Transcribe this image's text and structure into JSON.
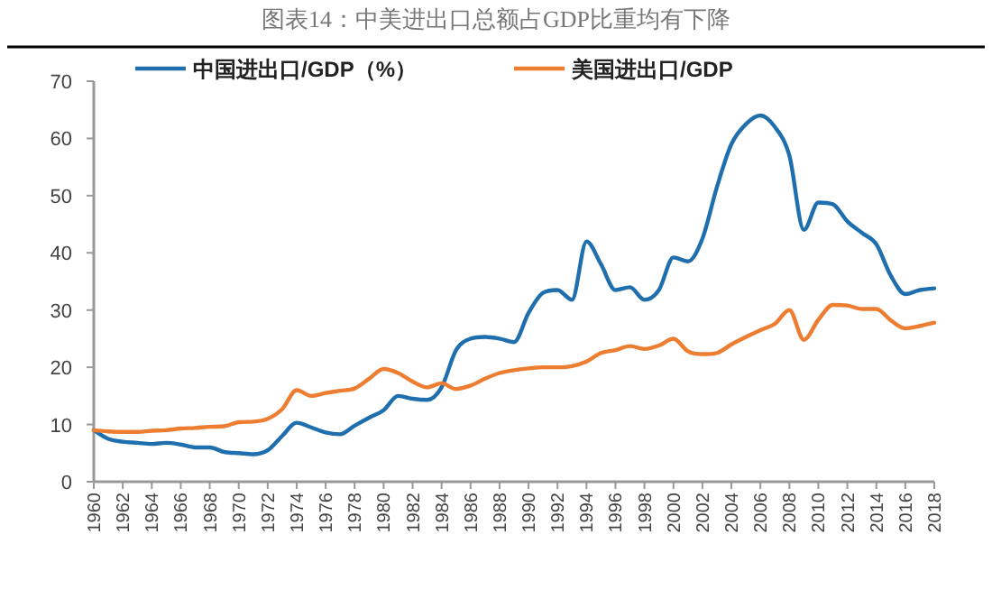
{
  "chart_data": {
    "type": "line",
    "title": "图表14：中美进出口总额占GDP比重均有下降",
    "x": [
      1960,
      1961,
      1962,
      1963,
      1964,
      1965,
      1966,
      1967,
      1968,
      1969,
      1970,
      1971,
      1972,
      1973,
      1974,
      1975,
      1976,
      1977,
      1978,
      1979,
      1980,
      1981,
      1982,
      1983,
      1984,
      1985,
      1986,
      1987,
      1988,
      1989,
      1990,
      1991,
      1992,
      1993,
      1994,
      1995,
      1996,
      1997,
      1998,
      1999,
      2000,
      2001,
      2002,
      2003,
      2004,
      2005,
      2006,
      2007,
      2008,
      2009,
      2010,
      2011,
      2012,
      2013,
      2014,
      2015,
      2016,
      2017,
      2018
    ],
    "xlim": [
      1960,
      2018
    ],
    "xticks": [
      1960,
      1962,
      1964,
      1966,
      1968,
      1970,
      1972,
      1974,
      1976,
      1978,
      1980,
      1982,
      1984,
      1986,
      1988,
      1990,
      1992,
      1994,
      1996,
      1998,
      2000,
      2002,
      2004,
      2006,
      2008,
      2010,
      2012,
      2014,
      2016,
      2018
    ],
    "ylim": [
      0,
      70
    ],
    "yticks": [
      0,
      10,
      20,
      30,
      40,
      50,
      60,
      70
    ],
    "legend": "top",
    "grid": false,
    "series": [
      {
        "name": "中国进出口/GDP（%）",
        "color": "#1f6fae",
        "values": [
          9,
          7.5,
          7,
          6.8,
          6.6,
          6.8,
          6.5,
          6,
          6,
          5.2,
          5,
          4.8,
          5.5,
          8,
          10.3,
          9.5,
          8.6,
          8.3,
          9.8,
          11.2,
          12.5,
          15,
          14.5,
          14.3,
          16.5,
          23,
          25,
          25.3,
          25,
          24.4,
          29.5,
          33,
          33.5,
          31.8,
          42,
          38,
          33.5,
          34,
          31.8,
          33.5,
          39.2,
          38.5,
          42.5,
          51.5,
          59,
          62.5,
          64,
          62,
          57,
          44,
          48.8,
          48.5,
          45.5,
          43.5,
          41.5,
          36,
          32.8,
          33.5,
          33.8
        ]
      },
      {
        "name": "美国进出口/GDP",
        "color": "#ed7d31",
        "values": [
          9,
          8.8,
          8.7,
          8.7,
          8.9,
          9,
          9.3,
          9.4,
          9.6,
          9.7,
          10.4,
          10.5,
          11,
          12.7,
          16,
          15,
          15.5,
          15.9,
          16.3,
          18,
          19.7,
          19,
          17.5,
          16.5,
          17.2,
          16.2,
          16.8,
          18,
          19,
          19.5,
          19.8,
          20,
          20,
          20.2,
          21,
          22.5,
          23,
          23.7,
          23.2,
          23.8,
          25,
          22.8,
          22.3,
          22.5,
          24,
          25.3,
          26.5,
          27.6,
          30,
          24.8,
          28.3,
          30.9,
          30.8,
          30.2,
          30.2,
          28.2,
          26.8,
          27.2,
          27.8
        ]
      }
    ]
  }
}
